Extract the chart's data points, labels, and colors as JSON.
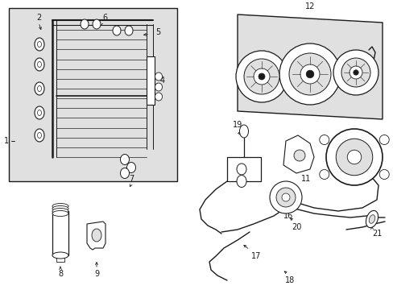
{
  "bg_color": "#ffffff",
  "lc": "#1a1a1a",
  "gray": "#c8c8c8",
  "light_gray": "#e0e0e0",
  "fig_w": 4.89,
  "fig_h": 3.6,
  "dpi": 100
}
